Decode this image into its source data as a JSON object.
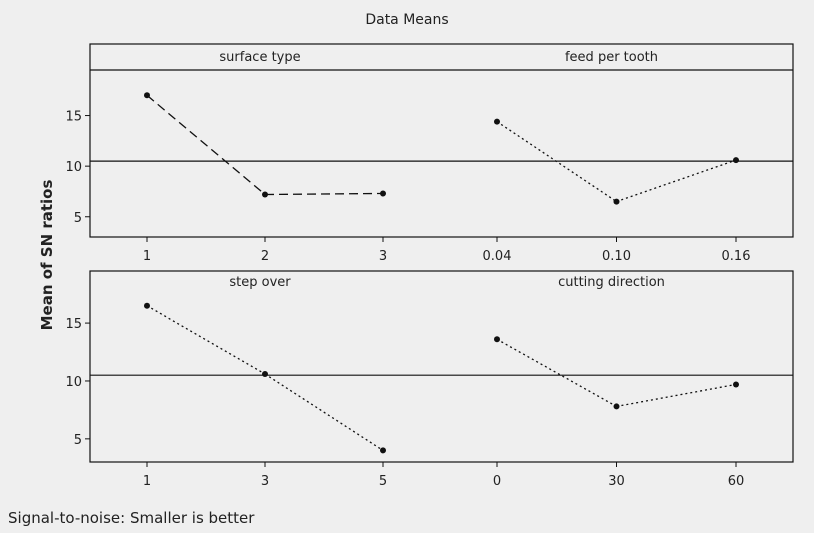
{
  "chart_data": {
    "type": "line",
    "title": "Data Means",
    "ylabel": "Mean of SN ratios",
    "footnote": "Signal-to-noise: Smaller is better",
    "background": "#efefef",
    "line_color": "#111111",
    "reference_line": 10.5,
    "rows": [
      {
        "ylim": [
          3.0,
          19.5
        ],
        "yticks": [
          5,
          10,
          15
        ],
        "ytick_labels": [
          "5",
          "10",
          "15"
        ]
      },
      {
        "ylim": [
          3.0,
          19.5
        ],
        "yticks": [
          5,
          10,
          15
        ],
        "ytick_labels": [
          "5",
          "10",
          "15"
        ]
      }
    ],
    "panels": [
      {
        "title": "surface type",
        "row": 0,
        "col": 0,
        "categories": [
          "1",
          "2",
          "3"
        ],
        "values": [
          17.0,
          7.2,
          7.3
        ]
      },
      {
        "title": "feed per tooth",
        "row": 0,
        "col": 1,
        "categories": [
          "0.04",
          "0.10",
          "0.16"
        ],
        "values": [
          14.4,
          6.5,
          10.6
        ]
      },
      {
        "title": "step over",
        "row": 1,
        "col": 0,
        "categories": [
          "1",
          "3",
          "5"
        ],
        "values": [
          16.5,
          10.6,
          4.0
        ]
      },
      {
        "title": "cutting direction",
        "row": 1,
        "col": 1,
        "categories": [
          "0",
          "30",
          "60"
        ],
        "values": [
          13.6,
          7.8,
          9.7
        ]
      }
    ]
  }
}
